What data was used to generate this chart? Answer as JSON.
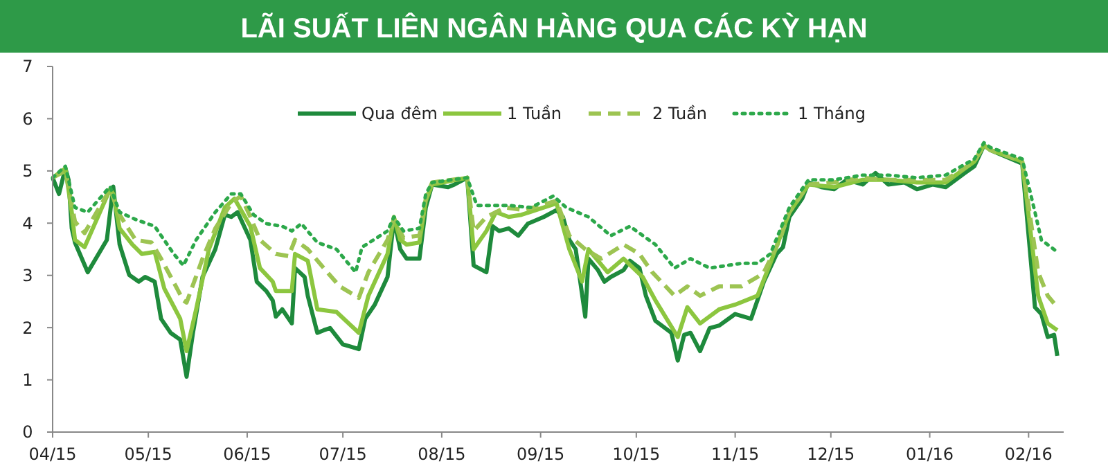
{
  "chart_data": {
    "type": "line",
    "title": "LÃI SUẤT LIÊN NGÂN HÀNG QUA CÁC KỲ HẠN",
    "xlim": [
      "2015-04-01",
      "2016-02-12"
    ],
    "xticks": [
      {
        "value": "2015-04-01",
        "label": "04/15"
      },
      {
        "value": "2015-05-01",
        "label": "05/15"
      },
      {
        "value": "2015-06-01",
        "label": "06/15"
      },
      {
        "value": "2015-07-01",
        "label": "07/15"
      },
      {
        "value": "2015-08-01",
        "label": "08/15"
      },
      {
        "value": "2015-09-01",
        "label": "09/15"
      },
      {
        "value": "2015-10-01",
        "label": "10/15"
      },
      {
        "value": "2015-11-01",
        "label": "11/15"
      },
      {
        "value": "2015-12-01",
        "label": "12/15"
      },
      {
        "value": "2016-01-01",
        "label": "01/16"
      },
      {
        "value": "2016-02-01",
        "label": "02/16"
      }
    ],
    "ylim": [
      0,
      7
    ],
    "yticks": [
      0,
      1,
      2,
      3,
      4,
      5,
      6,
      7
    ],
    "grid": false,
    "legend": "top",
    "series": [
      {
        "name": "Qua đêm",
        "color": "#1e8a3c",
        "line_style": "solid",
        "x": [
          "2015-04-01",
          "2015-04-03",
          "2015-04-05",
          "2015-04-06",
          "2015-04-07",
          "2015-04-08",
          "2015-04-12",
          "2015-04-18",
          "2015-04-20",
          "2015-04-22",
          "2015-04-25",
          "2015-04-28",
          "2015-04-30",
          "2015-05-03",
          "2015-05-05",
          "2015-05-08",
          "2015-05-11",
          "2015-05-13",
          "2015-05-15",
          "2015-05-18",
          "2015-05-22",
          "2015-05-25",
          "2015-05-27",
          "2015-05-29",
          "2015-06-02",
          "2015-06-04",
          "2015-06-07",
          "2015-06-09",
          "2015-06-10",
          "2015-06-12",
          "2015-06-15",
          "2015-06-16",
          "2015-06-19",
          "2015-06-20",
          "2015-06-23",
          "2015-06-25",
          "2015-06-27",
          "2015-07-01",
          "2015-07-06",
          "2015-07-08",
          "2015-07-11",
          "2015-07-15",
          "2015-07-17",
          "2015-07-19",
          "2015-07-21",
          "2015-07-25",
          "2015-07-27",
          "2015-07-29",
          "2015-08-03",
          "2015-08-05",
          "2015-08-09",
          "2015-08-11",
          "2015-08-15",
          "2015-08-17",
          "2015-08-19",
          "2015-08-22",
          "2015-08-25",
          "2015-08-28",
          "2015-09-02",
          "2015-09-06",
          "2015-09-08",
          "2015-09-10",
          "2015-09-12",
          "2015-09-15",
          "2015-09-16",
          "2015-09-19",
          "2015-09-21",
          "2015-09-23",
          "2015-09-27",
          "2015-09-29",
          "2015-10-02",
          "2015-10-04",
          "2015-10-07",
          "2015-10-12",
          "2015-10-14",
          "2015-10-16",
          "2015-10-18",
          "2015-10-21",
          "2015-10-24",
          "2015-10-27",
          "2015-11-01",
          "2015-11-06",
          "2015-11-10",
          "2015-11-14",
          "2015-11-16",
          "2015-11-18",
          "2015-11-22",
          "2015-11-24",
          "2015-11-28",
          "2015-12-02",
          "2015-12-06",
          "2015-12-11",
          "2015-12-15",
          "2015-12-19",
          "2015-12-24",
          "2015-12-28",
          "2016-01-02",
          "2016-01-06",
          "2016-01-12",
          "2016-01-15",
          "2016-01-18",
          "2016-01-20",
          "2016-01-30",
          "2016-02-03",
          "2016-02-05",
          "2016-02-07",
          "2016-02-09",
          "2016-02-10"
        ],
        "values": [
          4.87,
          4.56,
          5.05,
          4.83,
          3.9,
          3.63,
          3.06,
          3.68,
          4.7,
          3.59,
          3.01,
          2.88,
          2.97,
          2.88,
          2.17,
          1.9,
          1.77,
          1.06,
          1.9,
          2.97,
          3.5,
          4.16,
          4.12,
          4.21,
          3.68,
          2.88,
          2.7,
          2.52,
          2.21,
          2.35,
          2.08,
          3.14,
          2.97,
          2.61,
          1.9,
          1.95,
          1.99,
          1.68,
          1.59,
          2.17,
          2.44,
          2.97,
          4.07,
          3.5,
          3.32,
          3.32,
          4.3,
          4.74,
          4.69,
          4.74,
          4.87,
          3.19,
          3.06,
          3.94,
          3.85,
          3.9,
          3.76,
          3.99,
          4.12,
          4.25,
          4.12,
          3.68,
          3.5,
          2.21,
          3.32,
          3.1,
          2.88,
          2.97,
          3.1,
          3.28,
          3.14,
          2.61,
          2.13,
          1.9,
          1.37,
          1.86,
          1.9,
          1.55,
          1.99,
          2.04,
          2.26,
          2.17,
          2.88,
          3.41,
          3.54,
          4.12,
          4.47,
          4.78,
          4.69,
          4.65,
          4.83,
          4.74,
          4.96,
          4.74,
          4.78,
          4.65,
          4.74,
          4.69,
          4.96,
          5.09,
          5.49,
          5.4,
          5.14,
          2.39,
          2.26,
          1.82,
          1.86,
          1.46
        ]
      },
      {
        "name": "1 Tuần",
        "color": "#8cc63f",
        "line_style": "solid",
        "x": [
          "2015-04-01",
          "2015-04-05",
          "2015-04-07",
          "2015-04-08",
          "2015-04-11",
          "2015-04-19",
          "2015-04-20",
          "2015-04-22",
          "2015-04-26",
          "2015-04-29",
          "2015-05-03",
          "2015-05-06",
          "2015-05-11",
          "2015-05-13",
          "2015-05-16",
          "2015-05-20",
          "2015-05-25",
          "2015-05-28",
          "2015-06-02",
          "2015-06-05",
          "2015-06-09",
          "2015-06-10",
          "2015-06-15",
          "2015-06-16",
          "2015-06-20",
          "2015-06-23",
          "2015-06-29",
          "2015-07-06",
          "2015-07-09",
          "2015-07-15",
          "2015-07-17",
          "2015-07-19",
          "2015-07-21",
          "2015-07-25",
          "2015-07-27",
          "2015-07-29",
          "2015-08-09",
          "2015-08-11",
          "2015-08-15",
          "2015-08-18",
          "2015-08-22",
          "2015-08-26",
          "2015-09-02",
          "2015-09-06",
          "2015-09-10",
          "2015-09-14",
          "2015-09-16",
          "2015-09-22",
          "2015-09-27",
          "2015-10-03",
          "2015-10-07",
          "2015-10-14",
          "2015-10-17",
          "2015-10-21",
          "2015-10-27",
          "2015-11-01",
          "2015-11-08",
          "2015-11-12",
          "2015-11-18",
          "2015-11-24",
          "2015-12-02",
          "2015-12-11",
          "2015-12-19",
          "2015-12-28",
          "2016-01-06",
          "2016-01-15",
          "2016-01-18",
          "2016-01-20",
          "2016-01-30",
          "2016-02-04",
          "2016-02-07",
          "2016-02-10"
        ],
        "values": [
          4.87,
          5.05,
          4.21,
          3.68,
          3.54,
          4.65,
          4.56,
          3.9,
          3.59,
          3.41,
          3.45,
          2.75,
          2.17,
          1.55,
          2.35,
          3.5,
          4.3,
          4.47,
          3.94,
          3.14,
          2.88,
          2.7,
          2.7,
          3.41,
          3.28,
          2.35,
          2.3,
          1.9,
          2.61,
          3.41,
          4.12,
          3.68,
          3.59,
          3.63,
          4.43,
          4.74,
          4.87,
          3.5,
          3.85,
          4.21,
          4.12,
          4.16,
          4.3,
          4.38,
          3.5,
          2.88,
          3.5,
          3.06,
          3.32,
          2.97,
          2.52,
          1.82,
          2.39,
          2.08,
          2.35,
          2.44,
          2.61,
          3.23,
          4.21,
          4.74,
          4.69,
          4.83,
          4.83,
          4.78,
          4.78,
          5.18,
          5.49,
          5.4,
          5.18,
          2.61,
          2.08,
          1.95
        ]
      },
      {
        "name": "2 Tuần",
        "color": "#9dc452",
        "line_style": "dashed",
        "x": [
          "2015-04-01",
          "2015-04-05",
          "2015-04-08",
          "2015-04-11",
          "2015-04-19",
          "2015-04-22",
          "2015-04-27",
          "2015-05-02",
          "2015-05-05",
          "2015-05-12",
          "2015-05-13",
          "2015-05-18",
          "2015-05-22",
          "2015-05-27",
          "2015-05-30",
          "2015-06-02",
          "2015-06-05",
          "2015-06-10",
          "2015-06-14",
          "2015-06-16",
          "2015-06-20",
          "2015-06-25",
          "2015-06-30",
          "2015-07-06",
          "2015-07-09",
          "2015-07-15",
          "2015-07-17",
          "2015-07-20",
          "2015-07-25",
          "2015-07-27",
          "2015-07-29",
          "2015-08-09",
          "2015-08-11",
          "2015-08-15",
          "2015-08-21",
          "2015-08-27",
          "2015-09-06",
          "2015-09-10",
          "2015-09-15",
          "2015-09-20",
          "2015-09-27",
          "2015-10-02",
          "2015-10-06",
          "2015-10-13",
          "2015-10-17",
          "2015-10-21",
          "2015-10-27",
          "2015-11-03",
          "2015-11-08",
          "2015-11-10",
          "2015-11-15",
          "2015-11-18",
          "2015-11-24",
          "2015-12-02",
          "2015-12-11",
          "2015-12-19",
          "2015-12-28",
          "2016-01-06",
          "2016-01-15",
          "2016-01-18",
          "2016-01-20",
          "2016-01-30",
          "2016-02-04",
          "2016-02-07",
          "2016-02-10"
        ],
        "values": [
          4.87,
          5.0,
          4.03,
          3.81,
          4.65,
          4.16,
          3.68,
          3.63,
          3.32,
          2.52,
          2.48,
          3.32,
          3.9,
          4.38,
          4.52,
          4.12,
          3.68,
          3.41,
          3.37,
          3.68,
          3.5,
          3.14,
          2.79,
          2.57,
          3.06,
          3.68,
          4.07,
          3.72,
          3.76,
          4.47,
          4.78,
          4.87,
          3.85,
          4.12,
          4.3,
          4.25,
          4.43,
          3.76,
          3.5,
          3.32,
          3.59,
          3.41,
          3.06,
          2.61,
          2.79,
          2.61,
          2.79,
          2.79,
          2.97,
          3.06,
          3.68,
          4.21,
          4.74,
          4.78,
          4.87,
          4.83,
          4.83,
          4.83,
          5.18,
          5.49,
          5.4,
          5.18,
          3.06,
          2.61,
          2.39
        ]
      },
      {
        "name": "1 Tháng",
        "color": "#2ca84a",
        "line_style": "dotted",
        "x": [
          "2015-04-01",
          "2015-04-05",
          "2015-04-08",
          "2015-04-12",
          "2015-04-19",
          "2015-04-22",
          "2015-04-27",
          "2015-05-03",
          "2015-05-09",
          "2015-05-12",
          "2015-05-16",
          "2015-05-22",
          "2015-05-27",
          "2015-05-30",
          "2015-06-03",
          "2015-06-07",
          "2015-06-12",
          "2015-06-15",
          "2015-06-18",
          "2015-06-23",
          "2015-06-29",
          "2015-07-05",
          "2015-07-07",
          "2015-07-15",
          "2015-07-17",
          "2015-07-20",
          "2015-07-25",
          "2015-07-27",
          "2015-07-29",
          "2015-08-09",
          "2015-08-12",
          "2015-08-22",
          "2015-08-29",
          "2015-09-05",
          "2015-09-09",
          "2015-09-16",
          "2015-09-23",
          "2015-09-29",
          "2015-10-07",
          "2015-10-13",
          "2015-10-18",
          "2015-10-24",
          "2015-11-03",
          "2015-11-08",
          "2015-11-12",
          "2015-11-18",
          "2015-11-24",
          "2015-12-02",
          "2015-12-11",
          "2015-12-19",
          "2015-12-28",
          "2016-01-06",
          "2016-01-15",
          "2016-01-18",
          "2016-01-20",
          "2016-01-30",
          "2016-02-03",
          "2016-02-05",
          "2016-02-10"
        ],
        "values": [
          4.87,
          5.09,
          4.3,
          4.21,
          4.7,
          4.21,
          4.07,
          3.94,
          3.41,
          3.19,
          3.68,
          4.21,
          4.56,
          4.56,
          4.16,
          3.99,
          3.94,
          3.85,
          3.99,
          3.63,
          3.5,
          3.06,
          3.54,
          3.85,
          4.12,
          3.85,
          3.9,
          4.56,
          4.78,
          4.87,
          4.34,
          4.34,
          4.3,
          4.52,
          4.3,
          4.12,
          3.76,
          3.94,
          3.59,
          3.14,
          3.32,
          3.14,
          3.23,
          3.23,
          3.41,
          4.3,
          4.83,
          4.83,
          4.92,
          4.92,
          4.87,
          4.92,
          5.23,
          5.54,
          5.45,
          5.23,
          4.21,
          3.68,
          3.45
        ]
      }
    ]
  }
}
